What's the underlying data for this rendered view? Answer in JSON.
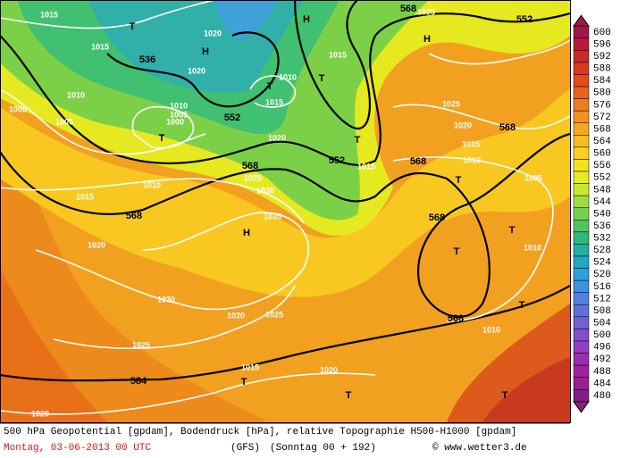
{
  "map": {
    "labels": [
      "1015",
      "T",
      "1020",
      "H",
      "1015",
      "536",
      "1020",
      "1010",
      "1005",
      "1005",
      "1010",
      "1005",
      "1000",
      "552",
      "T",
      "T",
      "1010",
      "1015",
      "1015",
      "H",
      "T",
      "568",
      "1025",
      "552",
      "H",
      "1025",
      "1020",
      "568",
      "1015",
      "1010",
      "1020",
      "552",
      "T",
      "1015",
      "568",
      "568",
      "1025",
      "1030",
      "1010",
      "1015",
      "568",
      "1035",
      "H",
      "1020",
      "T",
      "1005",
      "568",
      "T",
      "T",
      "1010",
      "T",
      "1030",
      "1020",
      "1025",
      "568",
      "1010",
      "1025",
      "584",
      "1015",
      "1020",
      "T",
      "T",
      "T",
      "1020"
    ]
  },
  "colorbar": {
    "ticks": [
      600,
      596,
      592,
      588,
      584,
      580,
      576,
      572,
      568,
      564,
      560,
      556,
      552,
      548,
      544,
      540,
      536,
      532,
      528,
      524,
      520,
      516,
      512,
      508,
      504,
      500,
      496,
      492,
      488,
      484,
      480
    ],
    "colors": [
      "#a0164a",
      "#b81a3a",
      "#c82a2a",
      "#d83a20",
      "#e24e18",
      "#e8641a",
      "#ee7c1c",
      "#f2921e",
      "#f5a822",
      "#f8bc22",
      "#f9cf20",
      "#f5e01e",
      "#e8eb1e",
      "#c8e830",
      "#a0dc40",
      "#78d050",
      "#50c460",
      "#30b878",
      "#20b0a0",
      "#20a8c0",
      "#30a0d8",
      "#4090e0",
      "#5080e0",
      "#6070d8",
      "#7060d0",
      "#8050c8",
      "#9040c0",
      "#9a30b0",
      "#a020a0",
      "#982090",
      "#802080"
    ]
  },
  "footer": {
    "line1": "500 hPa Geopotential [gpdam], Bodendruck [hPa], relative Topographie H500-H1000 [gpdam]",
    "date": "Montag, 03-06-2013  00 UTC",
    "model": "(GFS)",
    "run": "(Sonntag 00 + 192)",
    "copyright": "© www.wetter3.de"
  }
}
